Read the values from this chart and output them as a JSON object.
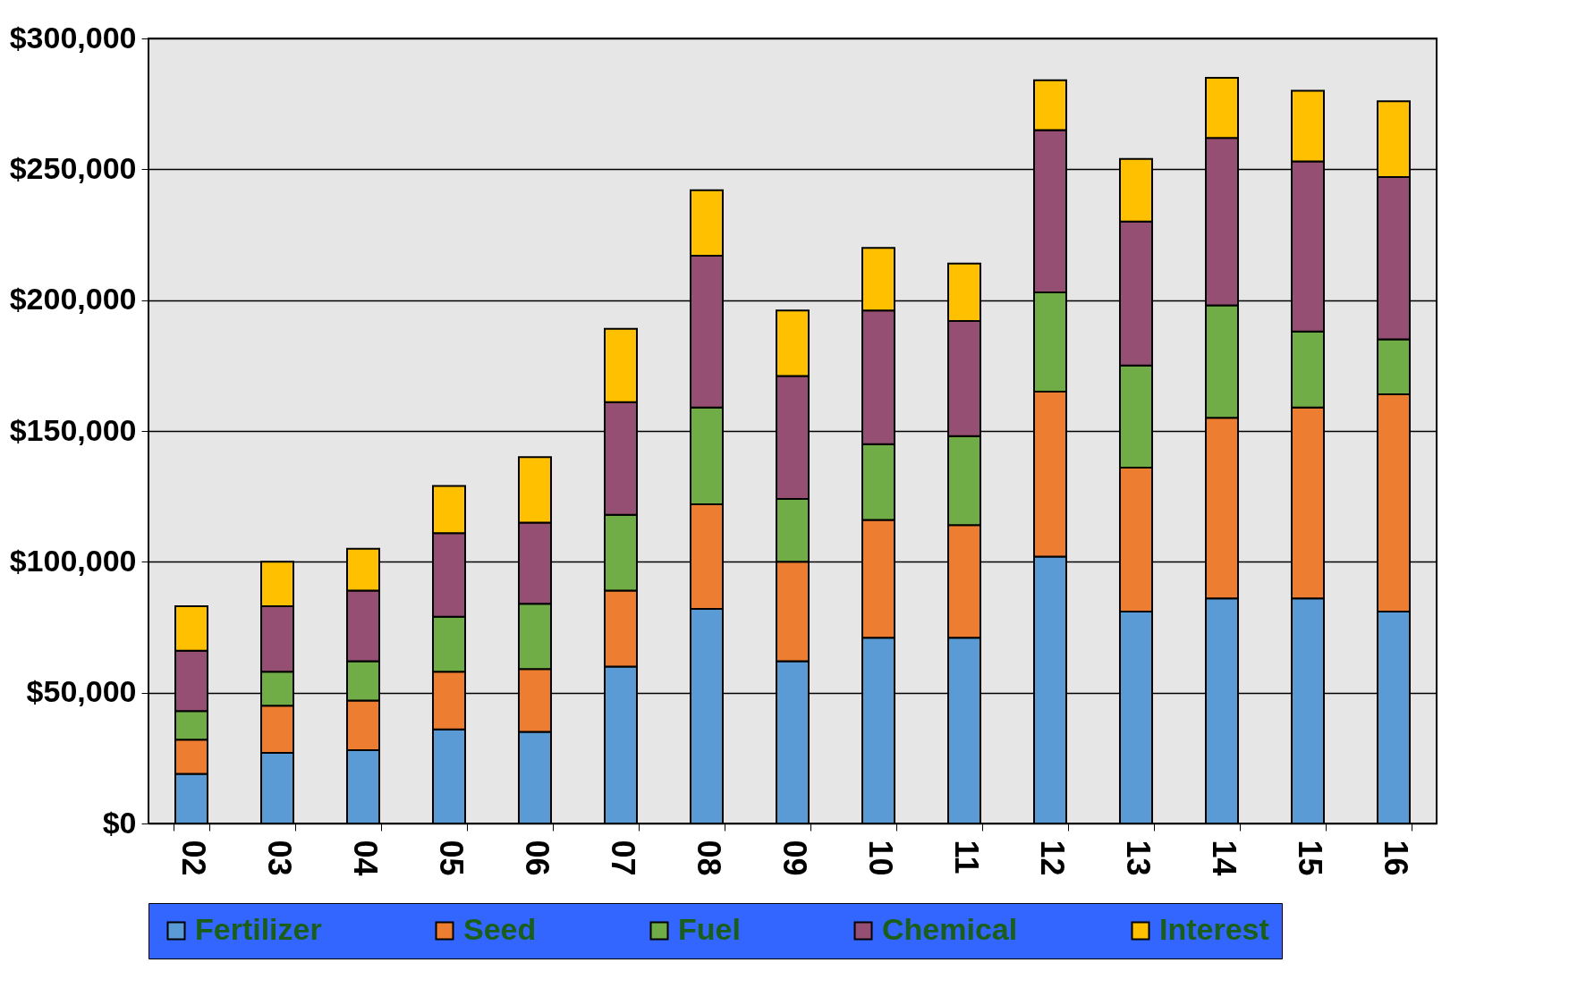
{
  "chart_data": {
    "type": "bar",
    "stacked": true,
    "categories": [
      "02",
      "03",
      "04",
      "05",
      "06",
      "07",
      "08",
      "09",
      "10",
      "11",
      "12",
      "13",
      "14",
      "15",
      "16"
    ],
    "series": [
      {
        "name": "Fertilizer",
        "color": "#5b9bd5",
        "values": [
          19000,
          27000,
          28000,
          36000,
          35000,
          60000,
          82000,
          62000,
          71000,
          71000,
          102000,
          81000,
          86000,
          86000,
          81000
        ]
      },
      {
        "name": "Seed",
        "color": "#ed7d31",
        "values": [
          13000,
          18000,
          19000,
          22000,
          24000,
          29000,
          40000,
          38000,
          45000,
          43000,
          63000,
          55000,
          69000,
          73000,
          83000
        ]
      },
      {
        "name": "Fuel",
        "color": "#70ad47",
        "values": [
          11000,
          13000,
          15000,
          21000,
          25000,
          29000,
          37000,
          24000,
          29000,
          34000,
          38000,
          39000,
          43000,
          29000,
          21000
        ]
      },
      {
        "name": "Chemical",
        "color": "#954f72",
        "values": [
          23000,
          25000,
          27000,
          32000,
          31000,
          43000,
          58000,
          47000,
          51000,
          44000,
          62000,
          55000,
          64000,
          65000,
          62000
        ]
      },
      {
        "name": "Interest",
        "color": "#ffc000",
        "values": [
          17000,
          17000,
          16000,
          18000,
          25000,
          28000,
          25000,
          25000,
          24000,
          22000,
          19000,
          24000,
          23000,
          27000,
          29000
        ]
      }
    ],
    "ylim": [
      0,
      300000
    ],
    "yticks": [
      {
        "value": 0,
        "label": "$0"
      },
      {
        "value": 50000,
        "label": "$50,000"
      },
      {
        "value": 100000,
        "label": "$100,000"
      },
      {
        "value": 150000,
        "label": "$150,000"
      },
      {
        "value": 200000,
        "label": "$200,000"
      },
      {
        "value": 250000,
        "label": "$250,000"
      },
      {
        "value": 300000,
        "label": "$300,000"
      }
    ],
    "grid": "y",
    "legend": "bottom"
  }
}
